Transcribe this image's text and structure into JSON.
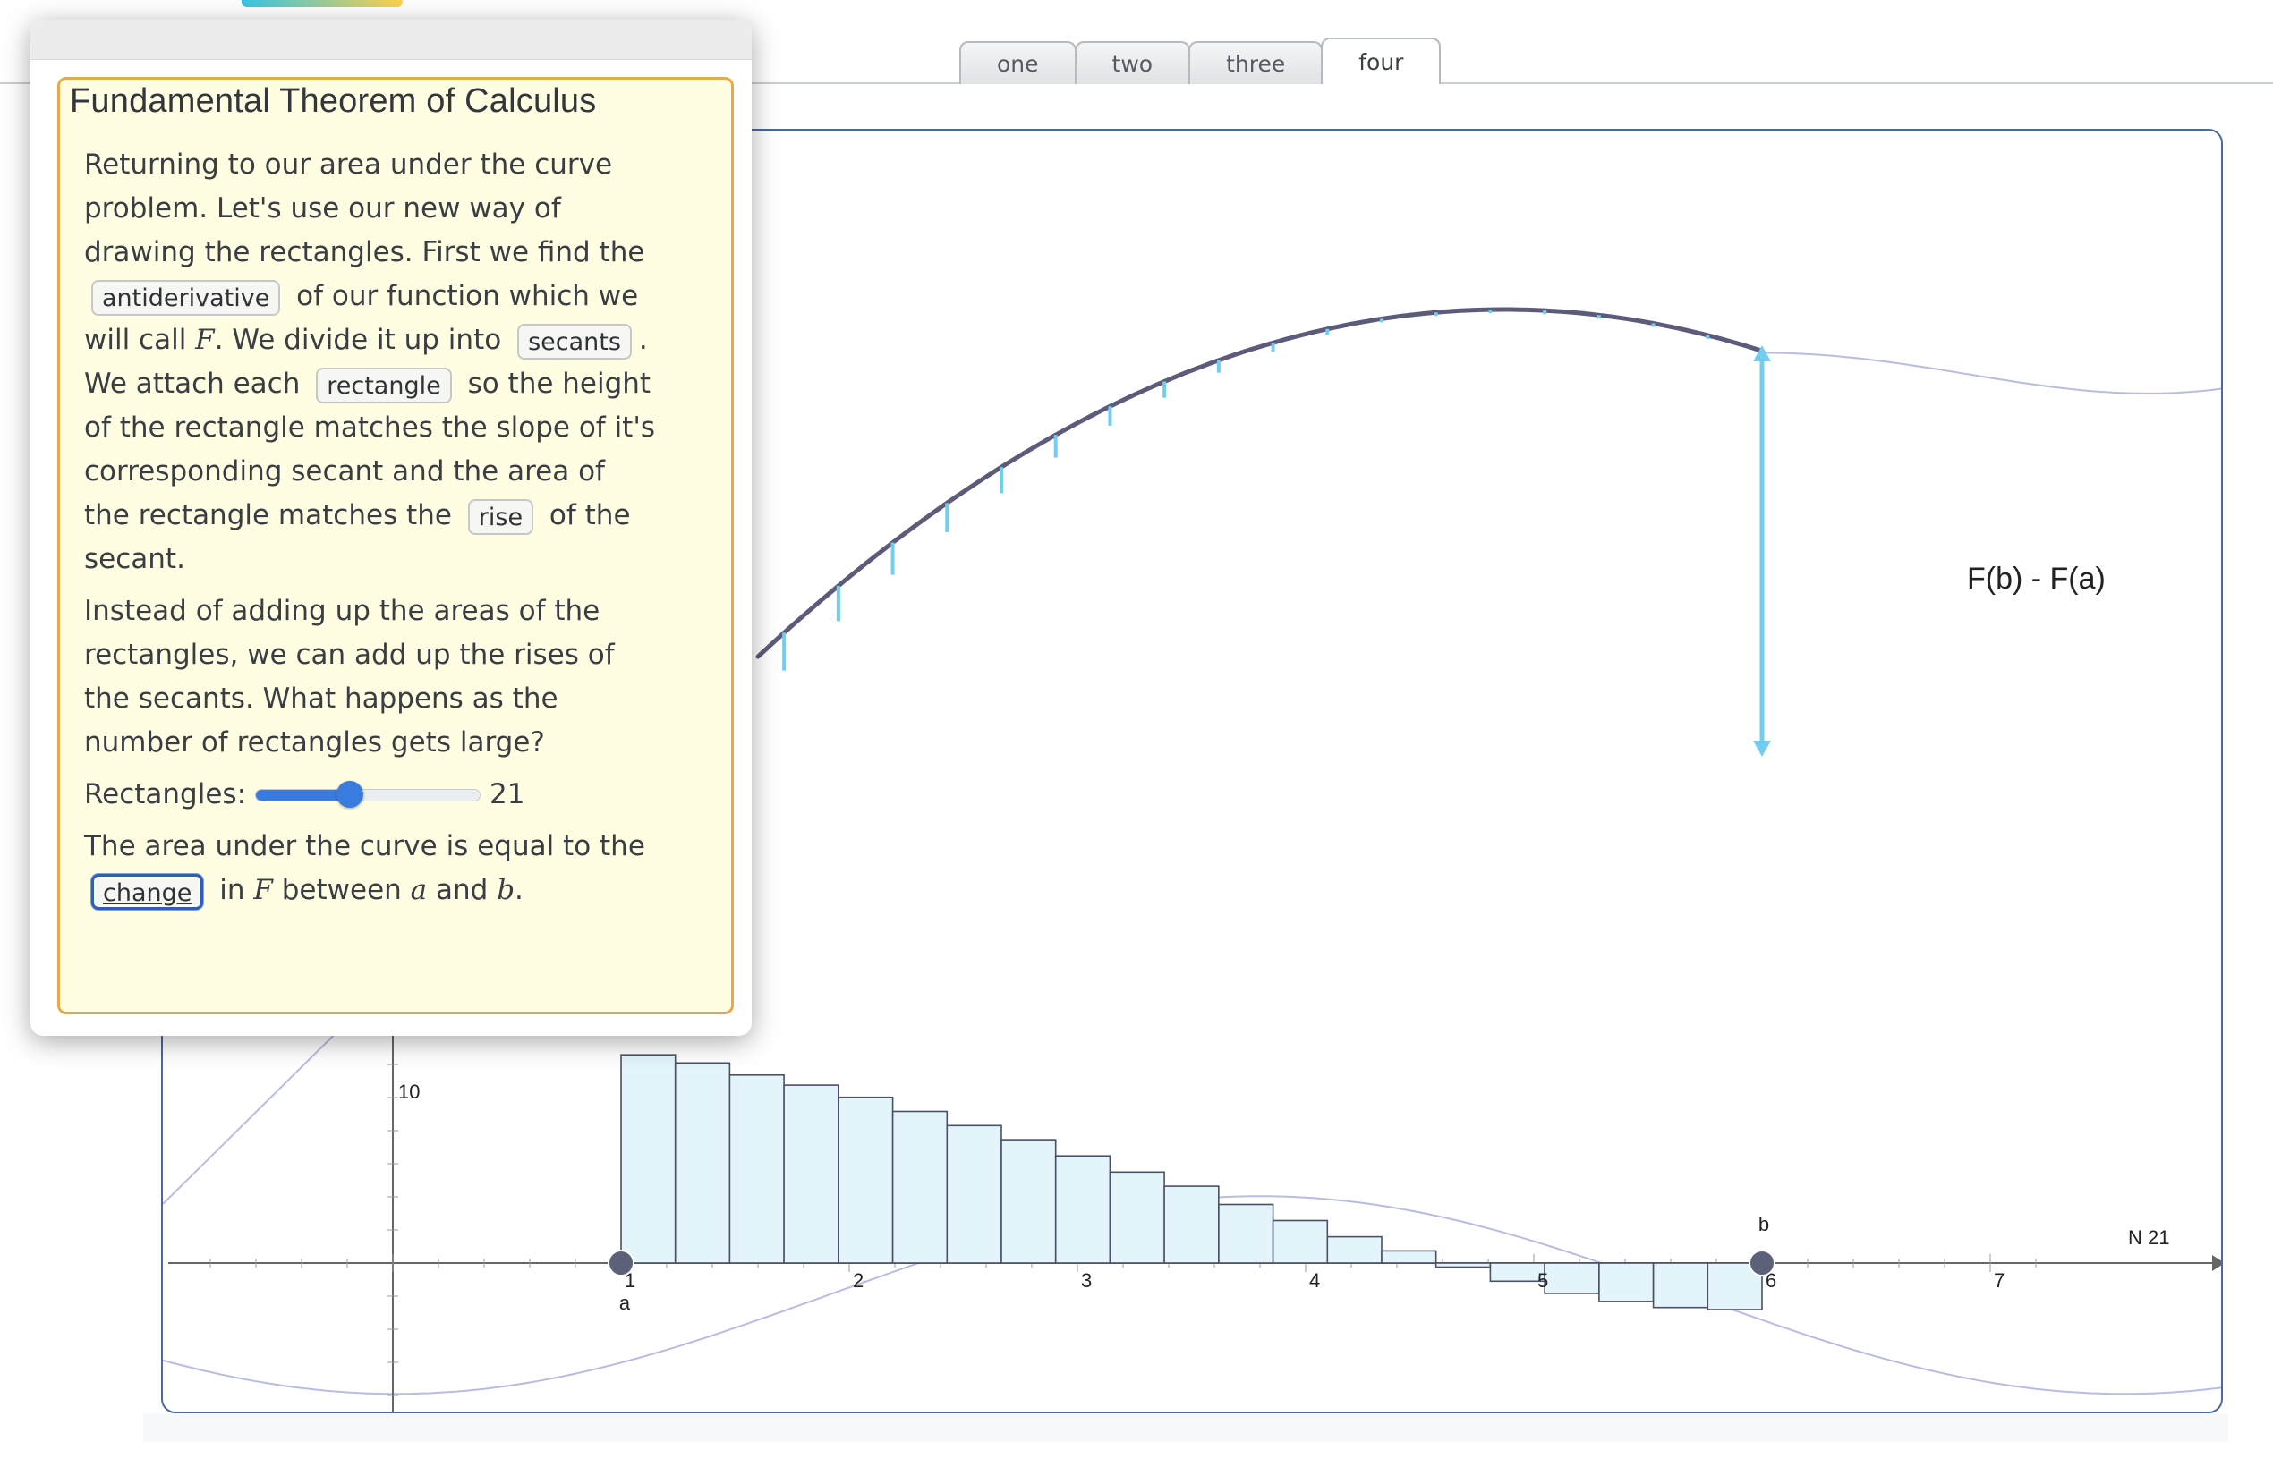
{
  "tabs": [
    {
      "label": "one",
      "active": false
    },
    {
      "label": "two",
      "active": false
    },
    {
      "label": "three",
      "active": false
    },
    {
      "label": "four",
      "active": true
    }
  ],
  "panel": {
    "title": "Fundamental Theorem of Calculus",
    "p1": {
      "t1": "Returning to our area under the curve problem. Let's use our new way of drawing the rectangles. First we find the",
      "chip1": "antiderivative",
      "t2": "of our function which we will call",
      "var_F": "F",
      "t3": ". We divide it up into",
      "chip2": "secants",
      "t4": ". We attach each",
      "chip3": "rectangle",
      "t5": "so the height of the rectangle matches the slope of it's corresponding secant and the area of the rectangle matches the",
      "chip4": "rise",
      "t6": "of the secant."
    },
    "p2": "Instead of adding up the areas of the rectangles, we can add up the rises of the secants. What happens as the number of rectangles gets large?",
    "slider": {
      "label": "Rectangles:",
      "value": "21",
      "fraction": 0.42
    },
    "p3": {
      "t1": "The area under the curve is equal to the",
      "chip": "change",
      "t2": "in",
      "var_F": "F",
      "t3": "between",
      "var_a": "a",
      "t4": "and",
      "var_b": "b",
      "t5": "."
    }
  },
  "graph": {
    "arrow_label": "F(b) - F(a)",
    "y_tick_label": "10",
    "x_tick_labels": [
      "1",
      "2",
      "3",
      "4",
      "5",
      "6",
      "7"
    ],
    "point_a_label": "a",
    "point_b_label": "b",
    "n_label": "N 21",
    "colors": {
      "curve": "#5c5c7a",
      "secant_ticks": "#72cdee",
      "arrow": "#72cdee",
      "rect_fill": "#e3f4fb",
      "rect_stroke": "#4a5068",
      "point": "#5c6078",
      "faint_curve": "#b9bce0"
    }
  },
  "chart_data": {
    "type": "bar",
    "title": "",
    "x_range": [
      1,
      6
    ],
    "N": 21,
    "xlabel": "",
    "ylabel": "",
    "y_tick": 10,
    "rect_heights": [
      10.3,
      9.9,
      9.3,
      8.8,
      8.2,
      7.5,
      6.8,
      6.1,
      5.3,
      4.5,
      3.8,
      2.9,
      2.1,
      1.3,
      0.6,
      -0.2,
      -0.9,
      -1.5,
      -1.9,
      -2.2,
      -2.3
    ]
  }
}
